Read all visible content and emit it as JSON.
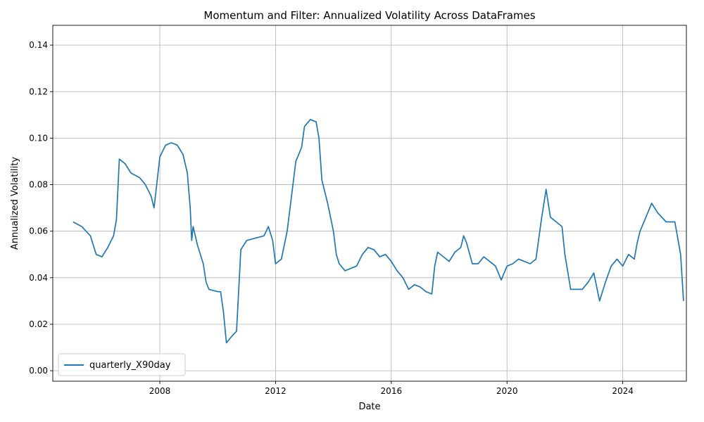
{
  "chart_data": {
    "type": "line",
    "title": "Momentum and Filter: Annualized Volatility Across DataFrames",
    "xlabel": "Date",
    "ylabel": "Annualized Volatility",
    "xlim": [
      2004.3,
      2026.2
    ],
    "ylim": [
      -0.0045,
      0.1485
    ],
    "x_ticks": [
      2008,
      2012,
      2016,
      2020,
      2024
    ],
    "y_ticks": [
      0.0,
      0.02,
      0.04,
      0.06,
      0.08,
      0.1,
      0.12,
      0.14
    ],
    "y_tick_labels": [
      "0.00",
      "0.02",
      "0.04",
      "0.06",
      "0.08",
      "0.10",
      "0.12",
      "0.14"
    ],
    "grid": true,
    "legend_position": "lower-left",
    "series": [
      {
        "name": "quarterly_X90day",
        "color": "#1f77b4",
        "points": [
          [
            2005.0,
            0.064
          ],
          [
            2005.3,
            0.062
          ],
          [
            2005.6,
            0.058
          ],
          [
            2005.8,
            0.05
          ],
          [
            2006.0,
            0.049
          ],
          [
            2006.2,
            0.053
          ],
          [
            2006.4,
            0.058
          ],
          [
            2006.5,
            0.065
          ],
          [
            2006.6,
            0.091
          ],
          [
            2006.8,
            0.089
          ],
          [
            2007.0,
            0.085
          ],
          [
            2007.3,
            0.083
          ],
          [
            2007.5,
            0.08
          ],
          [
            2007.7,
            0.075
          ],
          [
            2007.8,
            0.07
          ],
          [
            2008.0,
            0.092
          ],
          [
            2008.2,
            0.097
          ],
          [
            2008.4,
            0.098
          ],
          [
            2008.6,
            0.097
          ],
          [
            2008.8,
            0.093
          ],
          [
            2008.95,
            0.085
          ],
          [
            2009.05,
            0.07
          ],
          [
            2009.1,
            0.056
          ],
          [
            2009.15,
            0.062
          ],
          [
            2009.3,
            0.054
          ],
          [
            2009.5,
            0.046
          ],
          [
            2009.6,
            0.038
          ],
          [
            2009.7,
            0.035
          ],
          [
            2010.0,
            0.034
          ],
          [
            2010.1,
            0.034
          ],
          [
            2010.2,
            0.025
          ],
          [
            2010.3,
            0.012
          ],
          [
            2010.5,
            0.015
          ],
          [
            2010.65,
            0.017
          ],
          [
            2010.8,
            0.052
          ],
          [
            2011.0,
            0.056
          ],
          [
            2011.3,
            0.057
          ],
          [
            2011.6,
            0.058
          ],
          [
            2011.75,
            0.062
          ],
          [
            2011.9,
            0.056
          ],
          [
            2012.0,
            0.046
          ],
          [
            2012.2,
            0.048
          ],
          [
            2012.4,
            0.06
          ],
          [
            2012.5,
            0.07
          ],
          [
            2012.7,
            0.09
          ],
          [
            2012.9,
            0.096
          ],
          [
            2013.0,
            0.105
          ],
          [
            2013.2,
            0.108
          ],
          [
            2013.4,
            0.107
          ],
          [
            2013.5,
            0.1
          ],
          [
            2013.6,
            0.082
          ],
          [
            2013.8,
            0.072
          ],
          [
            2014.0,
            0.06
          ],
          [
            2014.1,
            0.05
          ],
          [
            2014.2,
            0.046
          ],
          [
            2014.4,
            0.043
          ],
          [
            2014.6,
            0.044
          ],
          [
            2014.8,
            0.045
          ],
          [
            2015.0,
            0.05
          ],
          [
            2015.2,
            0.053
          ],
          [
            2015.4,
            0.052
          ],
          [
            2015.6,
            0.049
          ],
          [
            2015.8,
            0.05
          ],
          [
            2016.0,
            0.047
          ],
          [
            2016.2,
            0.043
          ],
          [
            2016.4,
            0.04
          ],
          [
            2016.6,
            0.035
          ],
          [
            2016.8,
            0.037
          ],
          [
            2017.0,
            0.036
          ],
          [
            2017.2,
            0.034
          ],
          [
            2017.4,
            0.033
          ],
          [
            2017.5,
            0.045
          ],
          [
            2017.6,
            0.051
          ],
          [
            2017.8,
            0.049
          ],
          [
            2018.0,
            0.047
          ],
          [
            2018.2,
            0.051
          ],
          [
            2018.4,
            0.053
          ],
          [
            2018.5,
            0.058
          ],
          [
            2018.6,
            0.055
          ],
          [
            2018.8,
            0.046
          ],
          [
            2019.0,
            0.046
          ],
          [
            2019.2,
            0.049
          ],
          [
            2019.4,
            0.047
          ],
          [
            2019.6,
            0.045
          ],
          [
            2019.8,
            0.039
          ],
          [
            2020.0,
            0.045
          ],
          [
            2020.2,
            0.046
          ],
          [
            2020.4,
            0.048
          ],
          [
            2020.6,
            0.047
          ],
          [
            2020.8,
            0.046
          ],
          [
            2021.0,
            0.048
          ],
          [
            2021.2,
            0.066
          ],
          [
            2021.35,
            0.078
          ],
          [
            2021.5,
            0.066
          ],
          [
            2021.7,
            0.064
          ],
          [
            2021.9,
            0.062
          ],
          [
            2022.0,
            0.05
          ],
          [
            2022.2,
            0.035
          ],
          [
            2022.4,
            0.035
          ],
          [
            2022.6,
            0.035
          ],
          [
            2022.8,
            0.038
          ],
          [
            2023.0,
            0.042
          ],
          [
            2023.2,
            0.03
          ],
          [
            2023.4,
            0.038
          ],
          [
            2023.6,
            0.045
          ],
          [
            2023.8,
            0.048
          ],
          [
            2024.0,
            0.045
          ],
          [
            2024.2,
            0.05
          ],
          [
            2024.4,
            0.048
          ],
          [
            2024.5,
            0.055
          ],
          [
            2024.6,
            0.06
          ],
          [
            2024.8,
            0.066
          ],
          [
            2025.0,
            0.072
          ],
          [
            2025.2,
            0.068
          ],
          [
            2025.5,
            0.064
          ],
          [
            2025.8,
            0.064
          ],
          [
            2026.0,
            0.05
          ],
          [
            2026.1,
            0.03
          ]
        ]
      }
    ]
  }
}
